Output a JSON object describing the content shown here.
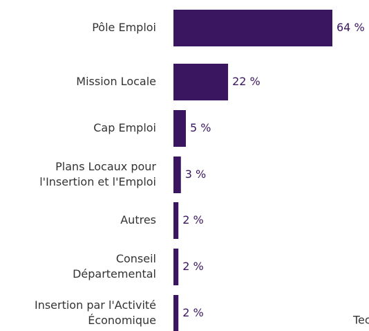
{
  "chart_data": {
    "type": "bar",
    "orientation": "horizontal",
    "categories": [
      [
        "Pôle  Emploi"
      ],
      [
        "Mission Locale"
      ],
      [
        "Cap Emploi"
      ],
      [
        "Plans Locaux pour",
        "l'Insertion et l'Emploi"
      ],
      [
        "Autres"
      ],
      [
        "Conseil",
        "Départemental"
      ],
      [
        "Insertion par l'Activité",
        "Économique"
      ]
    ],
    "values": [
      64,
      22,
      5,
      3,
      2,
      2,
      2
    ],
    "value_labels": [
      "64 %",
      "22 %",
      "5 %",
      "3 %",
      "2 %",
      "2 %",
      "2 %"
    ],
    "color": "#3a1560",
    "annotation": "Tec"
  }
}
